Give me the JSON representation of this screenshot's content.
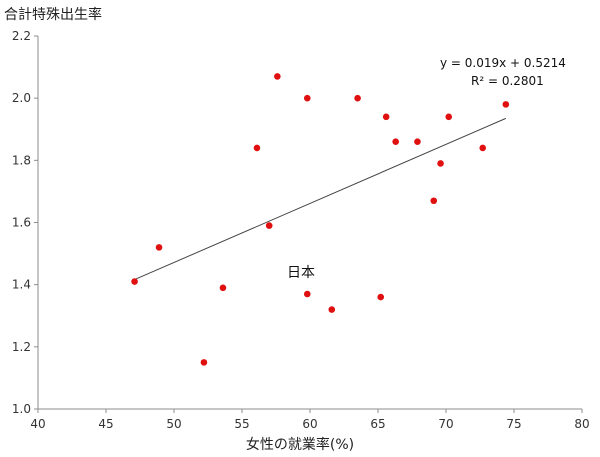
{
  "chart_data": {
    "type": "scatter",
    "title": "",
    "ylabel": "合計特殊出生率",
    "xlabel": "女性の就業率(%)",
    "xlim": [
      40,
      80
    ],
    "ylim": [
      1.0,
      2.2
    ],
    "xticks": [
      "40",
      "45",
      "50",
      "55",
      "60",
      "65",
      "70",
      "75",
      "80"
    ],
    "yticks": [
      "1.0",
      "1.2",
      "1.4",
      "1.6",
      "1.8",
      "2.0",
      "2.2"
    ],
    "grid": false,
    "marker_color": "#e01010",
    "points": [
      {
        "x": 47.1,
        "y": 1.41
      },
      {
        "x": 48.9,
        "y": 1.52
      },
      {
        "x": 52.2,
        "y": 1.15
      },
      {
        "x": 53.6,
        "y": 1.39
      },
      {
        "x": 56.1,
        "y": 1.84
      },
      {
        "x": 57.0,
        "y": 1.59
      },
      {
        "x": 57.6,
        "y": 2.07
      },
      {
        "x": 59.8,
        "y": 2.0
      },
      {
        "x": 59.8,
        "y": 1.37
      },
      {
        "x": 61.6,
        "y": 1.32
      },
      {
        "x": 63.5,
        "y": 2.0
      },
      {
        "x": 65.2,
        "y": 1.36
      },
      {
        "x": 65.6,
        "y": 1.94
      },
      {
        "x": 66.3,
        "y": 1.86
      },
      {
        "x": 67.9,
        "y": 1.86
      },
      {
        "x": 69.1,
        "y": 1.67
      },
      {
        "x": 69.6,
        "y": 1.79
      },
      {
        "x": 70.2,
        "y": 1.94
      },
      {
        "x": 72.7,
        "y": 1.84
      },
      {
        "x": 74.4,
        "y": 1.98
      }
    ],
    "trendline": {
      "color": "#444444",
      "equation": "y = 0.019x + 0.5214",
      "r2": "R² = 0.2801",
      "slope": 0.019,
      "intercept": 0.5214,
      "x_range": [
        47.1,
        74.4
      ]
    },
    "annotations": [
      {
        "text": "日本",
        "x": 59.8,
        "y": 1.37
      }
    ]
  }
}
